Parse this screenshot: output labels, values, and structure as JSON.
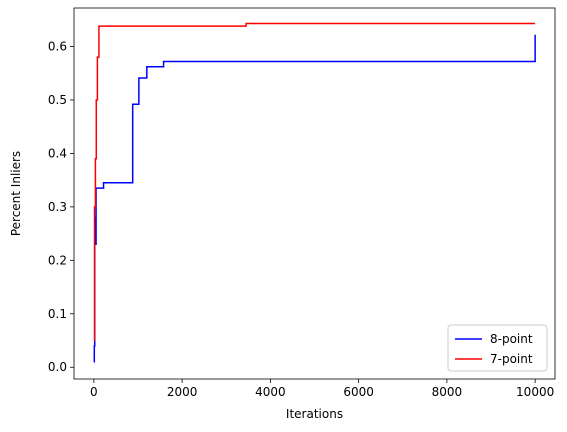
{
  "chart_data": {
    "type": "line",
    "title": "",
    "xlabel": "Iterations",
    "ylabel": "Percent Inliers",
    "xlim": [
      -450,
      10450
    ],
    "ylim": [
      -0.022,
      0.672
    ],
    "xticks": [
      0,
      2000,
      4000,
      6000,
      8000,
      10000
    ],
    "yticks": [
      0.0,
      0.1,
      0.2,
      0.3,
      0.4,
      0.5,
      0.6
    ],
    "xtick_labels": [
      "0",
      "2000",
      "4000",
      "6000",
      "8000",
      "10000"
    ],
    "ytick_labels": [
      "0.0",
      "0.1",
      "0.2",
      "0.3",
      "0.4",
      "0.5",
      "0.6"
    ],
    "grid": false,
    "legend_position": "lower-right",
    "series": [
      {
        "name": "8-point",
        "color": "#0000ff",
        "step": true,
        "x": [
          0,
          10,
          20,
          30,
          50,
          130,
          220,
          880,
          1020,
          1200,
          1580,
          10000
        ],
        "y": [
          0.01,
          0.04,
          0.28,
          0.23,
          0.335,
          0.335,
          0.345,
          0.492,
          0.541,
          0.562,
          0.572,
          0.622
        ]
      },
      {
        "name": "7-point",
        "color": "#ff0000",
        "step": true,
        "x": [
          0,
          15,
          35,
          55,
          80,
          115,
          3450,
          10000
        ],
        "y": [
          0.05,
          0.3,
          0.39,
          0.5,
          0.58,
          0.638,
          0.643,
          0.643
        ]
      }
    ]
  }
}
